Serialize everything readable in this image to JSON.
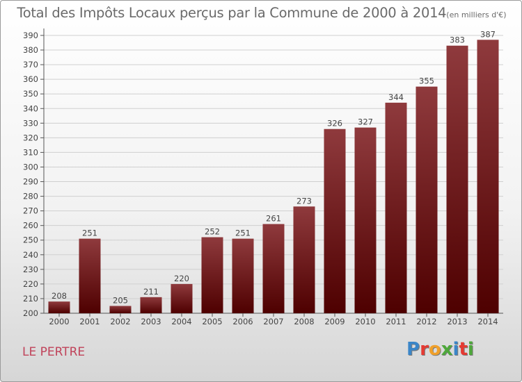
{
  "title": "Total des Impôts Locaux perçus par la Commune de 2000 à 2014",
  "title_unit": "(en milliers d'€)",
  "commune": "LE PERTRE",
  "logo": {
    "letters": [
      "P",
      "r",
      "o",
      "x",
      "i",
      "t",
      "i"
    ],
    "colors": [
      "#3b86c8",
      "#e53a32",
      "#f0a02a",
      "#4ea83b",
      "#3b86c8",
      "#e53a32",
      "#4ea83b"
    ]
  },
  "colors": {
    "bar_top": "#8f3a3d",
    "bar_bottom": "#4e0000",
    "grid": "#cfcfcf",
    "text": "#444444"
  },
  "chart_data": {
    "type": "bar",
    "title": "Total des Impôts Locaux perçus par la Commune de 2000 à 2014",
    "xlabel": "",
    "ylabel": "en milliers d'€",
    "categories": [
      "2000",
      "2001",
      "2002",
      "2003",
      "2004",
      "2005",
      "2006",
      "2007",
      "2008",
      "2009",
      "2010",
      "2011",
      "2012",
      "2013",
      "2014"
    ],
    "values": [
      208,
      251,
      205,
      211,
      220,
      252,
      251,
      261,
      273,
      326,
      327,
      344,
      355,
      383,
      387
    ],
    "ylim": [
      200,
      390
    ],
    "yticks": [
      200,
      210,
      220,
      230,
      240,
      250,
      260,
      270,
      280,
      290,
      300,
      310,
      320,
      330,
      340,
      350,
      360,
      370,
      380,
      390
    ],
    "grid": true,
    "legend": "none"
  }
}
